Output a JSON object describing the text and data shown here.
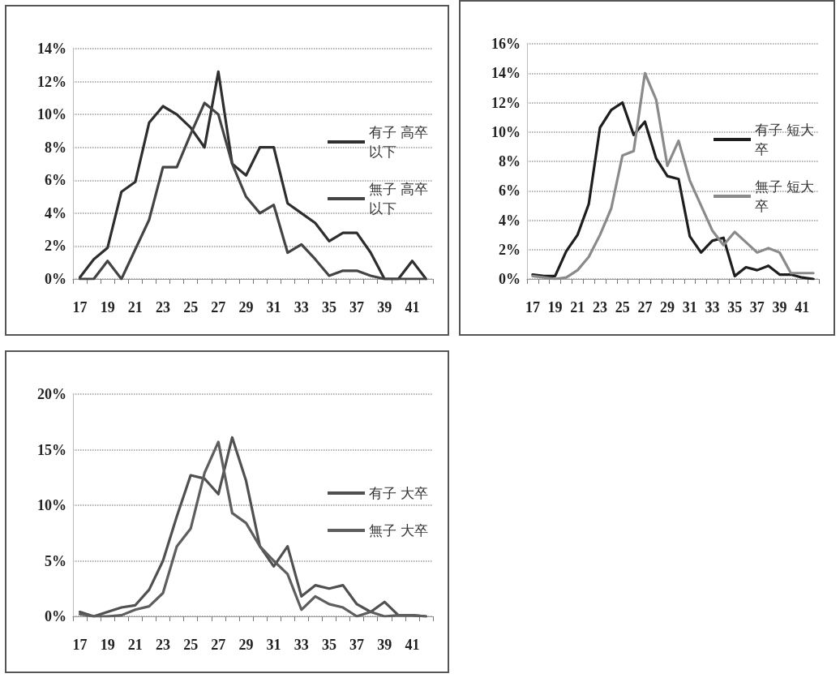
{
  "chart_data": [
    {
      "type": "line",
      "categories": [
        "17",
        null,
        "19",
        null,
        "21",
        null,
        "23",
        null,
        "25",
        null,
        "27",
        null,
        "29",
        null,
        "31",
        null,
        "33",
        null,
        "35",
        null,
        "37",
        null,
        "39",
        null,
        "41",
        null
      ],
      "series": [
        {
          "name": "有子 高卒以下",
          "color": "#2e2e2e",
          "values": [
            0.1,
            1.2,
            1.9,
            5.3,
            5.9,
            9.5,
            10.5,
            10.0,
            9.2,
            8.0,
            12.6,
            7.0,
            6.3,
            8.0,
            8.0,
            4.6,
            4.0,
            3.4,
            2.3,
            2.8,
            2.8,
            1.6,
            0,
            0,
            1.1,
            0
          ]
        },
        {
          "name": "無子 高卒以下",
          "color": "#444444",
          "values": [
            0,
            0,
            1.1,
            0,
            1.8,
            3.6,
            6.8,
            6.8,
            8.8,
            10.7,
            10.0,
            7.0,
            5.0,
            4.0,
            4.5,
            1.6,
            2.1,
            1.2,
            0.2,
            0.5,
            0.5,
            0.2,
            0,
            0,
            0,
            0
          ]
        }
      ],
      "ylim": [
        0,
        14
      ],
      "yticks": [
        {
          "value": 0,
          "label": "0%"
        },
        {
          "value": 2,
          "label": "2%"
        },
        {
          "value": 4,
          "label": "4%"
        },
        {
          "value": 6,
          "label": "6%"
        },
        {
          "value": 8,
          "label": "8%"
        },
        {
          "value": 10,
          "label": "10%"
        },
        {
          "value": 12,
          "label": "12%"
        },
        {
          "value": 14,
          "label": "14%"
        }
      ],
      "grid": "y",
      "legend": "right"
    },
    {
      "type": "line",
      "categories": [
        "17",
        null,
        "19",
        null,
        "21",
        null,
        "23",
        null,
        "25",
        null,
        "27",
        null,
        "29",
        null,
        "31",
        null,
        "33",
        null,
        "35",
        null,
        "37",
        null,
        "39",
        null,
        "41",
        null
      ],
      "series": [
        {
          "name": "有子 短大卒",
          "color": "#1e1e1e",
          "values": [
            0.3,
            0.2,
            0.2,
            1.9,
            3.0,
            5.1,
            10.3,
            11.5,
            12.0,
            9.8,
            10.7,
            8.2,
            7.0,
            6.8,
            2.9,
            1.8,
            2.6,
            2.8,
            0.2,
            0.8,
            0.6,
            0.9,
            0.3,
            0.3,
            0.1,
            0
          ]
        },
        {
          "name": "無子 短大卒",
          "color": "#8a8a8a",
          "values": [
            0.2,
            0.1,
            0,
            0.1,
            0.6,
            1.5,
            3.0,
            4.8,
            8.4,
            8.7,
            14.0,
            12.2,
            7.7,
            9.4,
            6.7,
            5.0,
            3.3,
            2.3,
            3.2,
            2.5,
            1.8,
            2.1,
            1.8,
            0.4,
            0.4,
            0.4
          ]
        }
      ],
      "ylim": [
        0,
        16
      ],
      "yticks": [
        {
          "value": 0,
          "label": "0%"
        },
        {
          "value": 2,
          "label": "2%"
        },
        {
          "value": 4,
          "label": "4%"
        },
        {
          "value": 6,
          "label": "6%"
        },
        {
          "value": 8,
          "label": "8%"
        },
        {
          "value": 10,
          "label": "10%"
        },
        {
          "value": 12,
          "label": "12%"
        },
        {
          "value": 14,
          "label": "14%"
        },
        {
          "value": 16,
          "label": "16%"
        }
      ],
      "grid": "y",
      "legend": "right"
    },
    {
      "type": "line",
      "categories": [
        "17",
        null,
        "19",
        null,
        "21",
        null,
        "23",
        null,
        "25",
        null,
        "27",
        null,
        "29",
        null,
        "31",
        null,
        "33",
        null,
        "35",
        null,
        "37",
        null,
        "39",
        null,
        "41",
        null
      ],
      "series": [
        {
          "name": "有子 大卒",
          "color": "#505050",
          "values": [
            0.4,
            0,
            0.4,
            0.8,
            1.0,
            2.4,
            5.0,
            9.0,
            12.7,
            12.4,
            11.0,
            16.1,
            12.2,
            6.3,
            4.5,
            6.3,
            1.8,
            2.8,
            2.5,
            2.8,
            1.1,
            0.4,
            1.3,
            0.1,
            0.1,
            0
          ]
        },
        {
          "name": "無子 大卒",
          "color": "#5e5e5e",
          "values": [
            0.2,
            0,
            0,
            0.1,
            0.6,
            0.9,
            2.1,
            6.3,
            7.9,
            12.9,
            15.7,
            9.3,
            8.4,
            6.3,
            5.0,
            3.8,
            0.6,
            1.8,
            1.1,
            0.8,
            0,
            0.4,
            0,
            0.1,
            0.1,
            0
          ]
        }
      ],
      "ylim": [
        0,
        20
      ],
      "yticks": [
        {
          "value": 0,
          "label": "0%"
        },
        {
          "value": 5,
          "label": "5%"
        },
        {
          "value": 10,
          "label": "10%"
        },
        {
          "value": 15,
          "label": "15%"
        },
        {
          "value": 20,
          "label": "20%"
        }
      ],
      "grid": "y",
      "legend": "right"
    }
  ]
}
